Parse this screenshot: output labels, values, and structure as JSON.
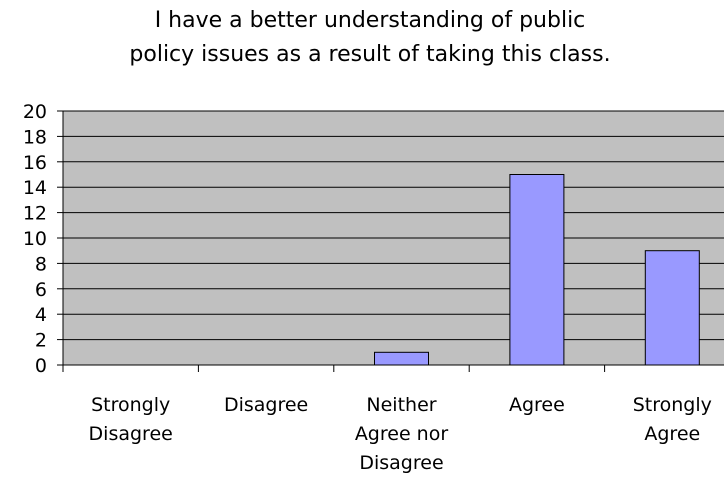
{
  "chart_data": {
    "type": "bar",
    "title_lines": [
      "I have a better understanding of public",
      "policy issues as a result of taking this class."
    ],
    "categories": [
      [
        "Strongly",
        "Disagree"
      ],
      [
        "Disagree"
      ],
      [
        "Neither",
        "Agree nor",
        "Disagree"
      ],
      [
        "Agree"
      ],
      [
        "Strongly",
        "Agree"
      ]
    ],
    "values": [
      0,
      0,
      1,
      15,
      9
    ],
    "ylim": [
      0,
      20
    ],
    "yticks": [
      0,
      2,
      4,
      6,
      8,
      10,
      12,
      14,
      16,
      18,
      20
    ],
    "grid": true,
    "legend": false,
    "colors": {
      "plot_background": "#c0c0c0",
      "bar_fill": "#9999ff",
      "bar_stroke": "#000000",
      "gridline": "#000000"
    }
  }
}
